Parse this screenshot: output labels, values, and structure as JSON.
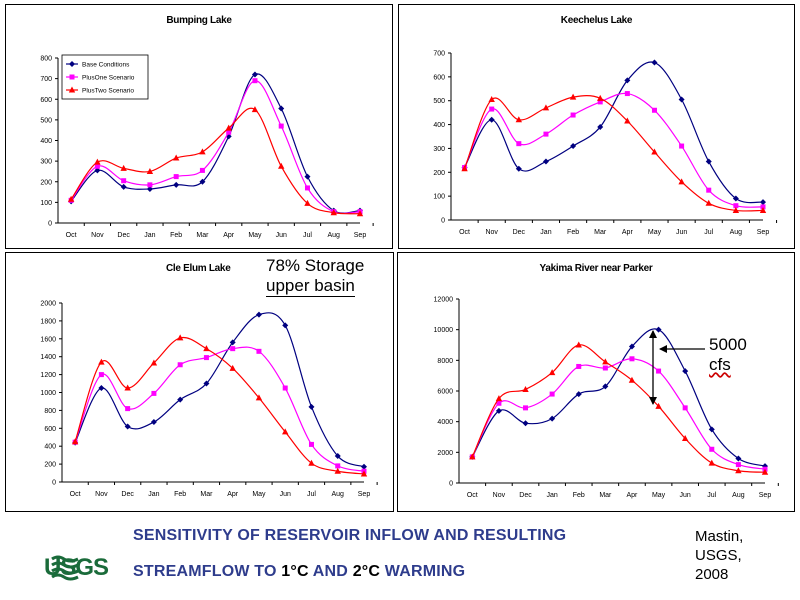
{
  "legend": {
    "items": [
      {
        "label": "Base Conditions",
        "color": "#000080",
        "marker": "diamond"
      },
      {
        "label": "PlusOne Scenario",
        "color": "#ff00ff",
        "marker": "square"
      },
      {
        "label": "PlusTwo Scenario",
        "color": "#ff0000",
        "marker": "triangle"
      }
    ]
  },
  "chart_data": [
    {
      "type": "line",
      "title": "Bumping Lake",
      "categories": [
        "Oct",
        "Nov",
        "Dec",
        "Jan",
        "Feb",
        "Mar",
        "Apr",
        "May",
        "Jun",
        "Jul",
        "Aug",
        "Sep"
      ],
      "ylim": [
        0,
        800
      ],
      "yticks": [
        "0",
        "100",
        "200",
        "300",
        "400",
        "500",
        "600",
        "700",
        "800"
      ],
      "yticks_values": [
        0,
        100,
        200,
        300,
        400,
        500,
        600,
        700,
        800
      ],
      "legend_position": "top-left",
      "grid": false,
      "series": [
        {
          "name": "Base Conditions",
          "values": [
            105,
            255,
            175,
            165,
            185,
            200,
            420,
            720,
            555,
            225,
            60,
            60
          ]
        },
        {
          "name": "PlusOne Scenario",
          "values": [
            110,
            275,
            205,
            185,
            225,
            255,
            440,
            690,
            470,
            170,
            55,
            55
          ]
        },
        {
          "name": "PlusTwo Scenario",
          "values": [
            115,
            295,
            265,
            250,
            315,
            345,
            460,
            550,
            275,
            95,
            50,
            45
          ]
        }
      ]
    },
    {
      "type": "line",
      "title": "Keechelus Lake",
      "categories": [
        "Oct",
        "Nov",
        "Dec",
        "Jan",
        "Feb",
        "Mar",
        "Apr",
        "May",
        "Jun",
        "Jul",
        "Aug",
        "Sep"
      ],
      "ylim": [
        0,
        700
      ],
      "yticks": [
        "0",
        "100",
        "200",
        "300",
        "400",
        "500",
        "600",
        "700"
      ],
      "yticks_values": [
        0,
        100,
        200,
        300,
        400,
        500,
        600,
        700
      ],
      "grid": false,
      "series": [
        {
          "name": "Base Conditions",
          "values": [
            220,
            420,
            215,
            245,
            310,
            390,
            585,
            660,
            505,
            245,
            90,
            75
          ]
        },
        {
          "name": "PlusOne Scenario",
          "values": [
            220,
            465,
            320,
            360,
            440,
            495,
            530,
            460,
            310,
            125,
            60,
            55
          ]
        },
        {
          "name": "PlusTwo Scenario",
          "values": [
            215,
            505,
            420,
            470,
            515,
            510,
            415,
            285,
            160,
            70,
            40,
            40
          ]
        }
      ]
    },
    {
      "type": "line",
      "title": "Cle Elum Lake",
      "categories": [
        "Oct",
        "Nov",
        "Dec",
        "Jan",
        "Feb",
        "Mar",
        "Apr",
        "May",
        "Jun",
        "Jul",
        "Aug",
        "Sep"
      ],
      "ylim": [
        0,
        2000
      ],
      "yticks": [
        "0",
        "200",
        "400",
        "600",
        "800",
        "1000",
        "1200",
        "1400",
        "1600",
        "1800",
        "2000"
      ],
      "yticks_values": [
        0,
        200,
        400,
        600,
        800,
        1000,
        1200,
        1400,
        1600,
        1800,
        2000
      ],
      "grid": false,
      "series": [
        {
          "name": "Base Conditions",
          "values": [
            440,
            1050,
            620,
            670,
            920,
            1100,
            1560,
            1870,
            1750,
            840,
            290,
            170
          ]
        },
        {
          "name": "PlusOne Scenario",
          "values": [
            445,
            1200,
            820,
            990,
            1310,
            1390,
            1490,
            1460,
            1050,
            420,
            180,
            120
          ]
        },
        {
          "name": "PlusTwo Scenario",
          "values": [
            450,
            1340,
            1050,
            1330,
            1610,
            1490,
            1270,
            940,
            560,
            210,
            120,
            90
          ]
        }
      ]
    },
    {
      "type": "line",
      "title": "Yakima River near Parker",
      "categories": [
        "Oct",
        "Nov",
        "Dec",
        "Jan",
        "Feb",
        "Mar",
        "Apr",
        "May",
        "Jun",
        "Jul",
        "Aug",
        "Sep"
      ],
      "ylim": [
        0,
        12000
      ],
      "yticks": [
        "0",
        "2000",
        "4000",
        "6000",
        "8000",
        "10000",
        "12000"
      ],
      "yticks_values": [
        0,
        2000,
        4000,
        6000,
        8000,
        10000,
        12000
      ],
      "grid": false,
      "series": [
        {
          "name": "Base Conditions",
          "values": [
            1700,
            4700,
            3900,
            4200,
            5800,
            6300,
            8900,
            10000,
            7300,
            3500,
            1600,
            1100
          ]
        },
        {
          "name": "PlusOne Scenario",
          "values": [
            1700,
            5200,
            4900,
            5800,
            7600,
            7500,
            8100,
            7300,
            4900,
            2200,
            1200,
            900
          ]
        },
        {
          "name": "PlusTwo Scenario",
          "values": [
            1700,
            5500,
            6100,
            7200,
            9000,
            7900,
            6700,
            5000,
            2900,
            1300,
            800,
            700
          ]
        }
      ]
    }
  ],
  "callouts": {
    "storage_line1": "78% Storage",
    "storage_line2": "upper basin",
    "cfs_line1": "5000",
    "cfs_line2": "cfs"
  },
  "footer": {
    "title_line1": "SENSITIVITY OF RESERVOIR INFLOW AND RESULTING",
    "title_line2_a": "STREAMFLOW TO ",
    "title_line2_b": "1°C",
    "title_line2_c": "  AND ",
    "title_line2_d": "2°C",
    "title_line2_e": "  WARMING",
    "attribution_line1": "Mastin,",
    "attribution_line2": "USGS,",
    "attribution_line3": "2008",
    "logo_text": "USGS"
  }
}
